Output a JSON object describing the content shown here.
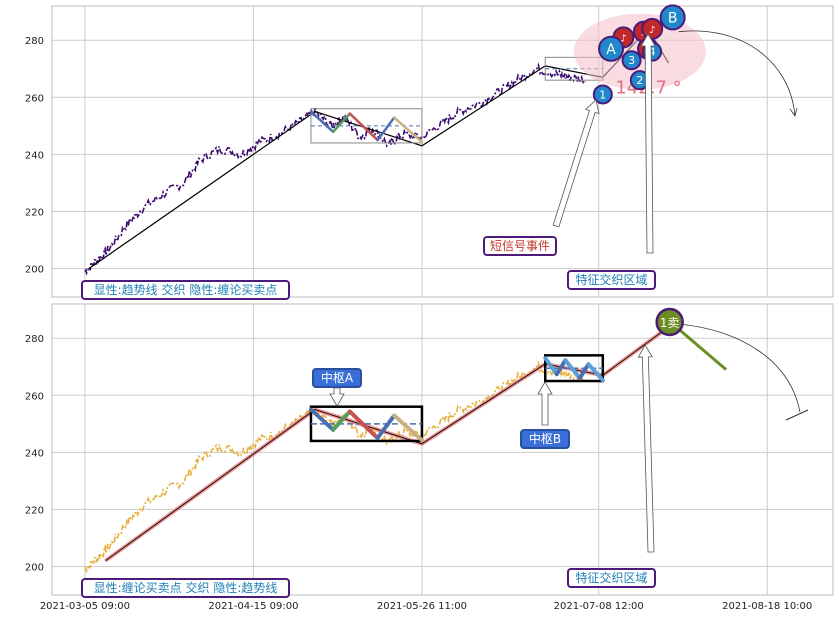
{
  "colors": {
    "price_top": "#3b0a6e",
    "price_bottom": "#e8b040",
    "trend": "#000000",
    "trend_bottom_glow": "#f08080",
    "grid": "#cccccc",
    "seg_blue": "#4a6fb0",
    "seg_green": "#4fa060",
    "seg_red": "#c85050",
    "seg_tan": "#c8b080",
    "seg_lightblue": "#5aa0d8",
    "badge_border": "#4b1a7a",
    "badge_text": "#1f7fb5",
    "badge_red_text": "#c0392b",
    "signal_red": "#c0282a",
    "signal_blue": "#2288cc",
    "sell_green": "#6b8e23"
  },
  "chart_data": [
    {
      "type": "line",
      "panel": "top",
      "title": "",
      "xlabel": "",
      "ylabel": "",
      "ylim": [
        190,
        292
      ],
      "yticks": [
        200,
        220,
        240,
        260,
        280
      ],
      "series": [],
      "price_path": [
        [
          "2021-03-05",
          199
        ],
        [
          "2021-03-08",
          203
        ],
        [
          "2021-03-11",
          207
        ],
        [
          "2021-03-15",
          215
        ],
        [
          "2021-03-19",
          221
        ],
        [
          "2021-03-24",
          226
        ],
        [
          "2021-03-29",
          230
        ],
        [
          "2021-04-02",
          238
        ],
        [
          "2021-04-07",
          242
        ],
        [
          "2021-04-12",
          240
        ],
        [
          "2021-04-16",
          244
        ],
        [
          "2021-04-21",
          247
        ],
        [
          "2021-04-26",
          251
        ],
        [
          "2021-04-30",
          255
        ],
        [
          "2021-05-04",
          250
        ],
        [
          "2021-05-07",
          253
        ],
        [
          "2021-05-11",
          246
        ],
        [
          "2021-05-14",
          249
        ],
        [
          "2021-05-18",
          243
        ],
        [
          "2021-05-21",
          247
        ],
        [
          "2021-05-26",
          246
        ],
        [
          "2021-05-31",
          251
        ],
        [
          "2021-06-04",
          255
        ],
        [
          "2021-06-09",
          258
        ],
        [
          "2021-06-14",
          262
        ],
        [
          "2021-06-18",
          266
        ],
        [
          "2021-06-23",
          270
        ],
        [
          "2021-06-28",
          268
        ],
        [
          "2021-07-01",
          267
        ],
        [
          "2021-07-05",
          266
        ]
      ],
      "trend_line": [
        [
          "2021-03-06",
          200
        ],
        [
          "2021-04-30",
          255
        ],
        [
          "2021-05-26",
          243
        ],
        [
          "2021-06-25",
          271
        ],
        [
          "2021-07-09",
          267
        ],
        [
          "2021-07-20",
          284
        ],
        [
          "2021-07-25",
          272
        ]
      ],
      "zhongshu_boxes": [
        {
          "x0": "2021-04-29",
          "x1": "2021-05-26",
          "y0": 244,
          "y1": 256
        },
        {
          "x0": "2021-06-25",
          "x1": "2021-07-09",
          "y0": 266,
          "y1": 274
        }
      ],
      "signals_blue": [
        {
          "label": "1",
          "x": "2021-07-09",
          "y": 261
        },
        {
          "label": "2",
          "x": "2021-07-18",
          "y": 266
        },
        {
          "label": "3",
          "x": "2021-07-16",
          "y": 273
        },
        {
          "label": "4",
          "x": "2021-07-21",
          "y": 276
        },
        {
          "label": "A",
          "x": "2021-07-11",
          "y": 277
        },
        {
          "label": "B",
          "x": "2021-07-26",
          "y": 288
        }
      ],
      "signals_red": [
        {
          "label": "♪",
          "x": "2021-07-14",
          "y": 281
        },
        {
          "label": "♪",
          "x": "2021-07-19",
          "y": 283
        },
        {
          "label": "♪",
          "x": "2021-07-21",
          "y": 284
        },
        {
          "label": "♪",
          "x": "2021-07-20",
          "y": 277
        }
      ],
      "angle_text": "142.7 °",
      "annotations": {
        "short_signal": "短信号事件",
        "feature_zone": "特征交织区域",
        "legend_note": "显性:趋势线 交织 隐性:缠论买卖点"
      }
    },
    {
      "type": "line",
      "panel": "bottom",
      "title": "",
      "xlabel": "",
      "ylabel": "",
      "ylim": [
        190,
        292
      ],
      "yticks": [
        200,
        220,
        240,
        260,
        280
      ],
      "series": [],
      "zhongshu_boxes": [
        {
          "x0": "2021-04-29",
          "x1": "2021-05-26",
          "y0": 244,
          "y1": 256,
          "label": "中枢A"
        },
        {
          "x0": "2021-06-25",
          "x1": "2021-07-09",
          "y0": 265,
          "y1": 274,
          "label": "中枢B"
        }
      ],
      "sell_point": {
        "label": "1卖",
        "x": "2021-07-26",
        "y": 285
      },
      "annotations": {
        "feature_zone": "特征交织区域",
        "legend_note": "显性:缠论买卖点 交织 隐性:趋势线"
      }
    }
  ],
  "xaxis": {
    "tick_labels": [
      "2021-03-05 09:00",
      "2021-04-15 09:00",
      "2021-05-26 11:00",
      "2021-07-08 12:00",
      "2021-08-18 10:00"
    ]
  }
}
